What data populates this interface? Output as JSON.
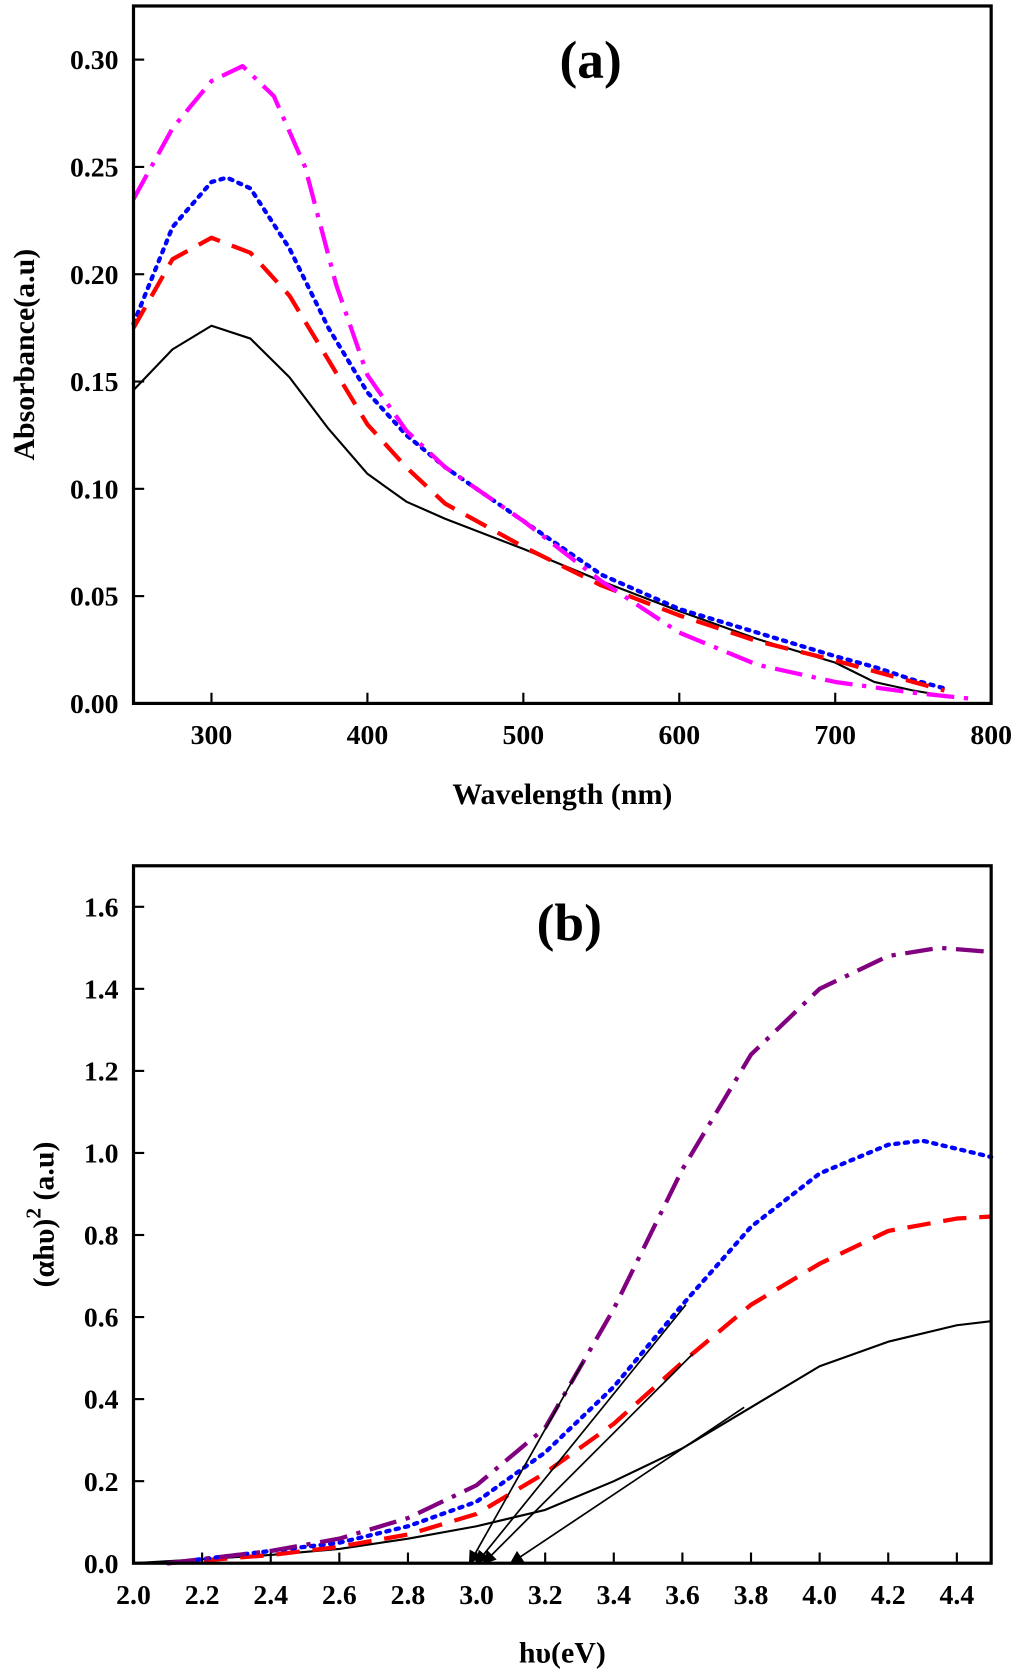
{
  "chart_data": [
    {
      "type": "line",
      "title": "(a)",
      "xlabel": "Wavelength (nm)",
      "ylabel": "Absorbance(a.u)",
      "xlim": [
        250,
        800
      ],
      "ylim": [
        0,
        0.325
      ],
      "xticks": [
        300,
        400,
        500,
        600,
        700,
        800
      ],
      "xtick_labels": [
        "300",
        "400",
        "500",
        "600",
        "700",
        "800"
      ],
      "yticks": [
        0,
        0.05,
        0.1,
        0.15,
        0.2,
        0.25,
        0.3
      ],
      "ytick_labels": [
        "0.00",
        "0.05",
        "0.10",
        "0.15",
        "0.20",
        "0.25",
        "0.30"
      ],
      "grid": false,
      "series": [
        {
          "color": "#000000",
          "style": "solid",
          "x": [
            250,
            275,
            300,
            325,
            350,
            375,
            400,
            425,
            450,
            500,
            550,
            600,
            650,
            700,
            725,
            750,
            775
          ],
          "y": [
            0.146,
            0.165,
            0.176,
            0.17,
            0.152,
            0.128,
            0.107,
            0.094,
            0.086,
            0.072,
            0.057,
            0.043,
            0.03,
            0.019,
            0.01,
            0.006,
            0.003
          ]
        },
        {
          "color": "#0000ff",
          "style": "dotted",
          "x": [
            250,
            275,
            300,
            310,
            325,
            350,
            375,
            400,
            425,
            450,
            500,
            550,
            600,
            650,
            700,
            725,
            750,
            770
          ],
          "y": [
            0.177,
            0.222,
            0.243,
            0.245,
            0.24,
            0.212,
            0.175,
            0.145,
            0.125,
            0.11,
            0.085,
            0.06,
            0.044,
            0.033,
            0.022,
            0.017,
            0.011,
            0.007
          ]
        },
        {
          "color": "#ff0000",
          "style": "dashed",
          "x": [
            250,
            275,
            300,
            325,
            350,
            375,
            400,
            425,
            450,
            500,
            550,
            600,
            650,
            700,
            750,
            770
          ],
          "y": [
            0.175,
            0.207,
            0.217,
            0.21,
            0.19,
            0.16,
            0.13,
            0.11,
            0.093,
            0.073,
            0.055,
            0.041,
            0.029,
            0.02,
            0.01,
            0.006
          ]
        },
        {
          "color": "#ff00ff",
          "style": "dashdot",
          "x": [
            250,
            275,
            300,
            320,
            340,
            360,
            380,
            400,
            425,
            450,
            500,
            550,
            600,
            650,
            700,
            750,
            790
          ],
          "y": [
            0.235,
            0.268,
            0.29,
            0.297,
            0.283,
            0.25,
            0.195,
            0.153,
            0.127,
            0.11,
            0.085,
            0.057,
            0.033,
            0.018,
            0.01,
            0.005,
            0.002
          ]
        }
      ]
    },
    {
      "type": "line",
      "title": "(b)",
      "xlabel": "hυ(eV)",
      "ylabel": "(αhυ)",
      "ylabel_sup": "2",
      "ylabel_unit": " (a.u)",
      "xlim": [
        2.0,
        4.5
      ],
      "ylim": [
        0,
        1.7
      ],
      "xticks": [
        2.0,
        2.2,
        2.4,
        2.6,
        2.8,
        3.0,
        3.2,
        3.4,
        3.6,
        3.8,
        4.0,
        4.2,
        4.4
      ],
      "xtick_labels": [
        "2.0",
        "2.2",
        "2.4",
        "2.6",
        "2.8",
        "3.0",
        "3.2",
        "3.4",
        "3.6",
        "3.8",
        "4.0",
        "4.2",
        "4.4"
      ],
      "yticks": [
        0,
        0.2,
        0.4,
        0.6,
        0.8,
        1.0,
        1.2,
        1.4,
        1.6
      ],
      "ytick_labels": [
        "0.0",
        "0.2",
        "0.4",
        "0.6",
        "0.8",
        "1.0",
        "1.2",
        "1.4",
        "1.6"
      ],
      "grid": false,
      "series": [
        {
          "color": "#000000",
          "style": "solid",
          "x": [
            2.0,
            2.2,
            2.4,
            2.6,
            2.8,
            3.0,
            3.2,
            3.4,
            3.6,
            3.8,
            4.0,
            4.2,
            4.4,
            4.5
          ],
          "y": [
            0,
            0.01,
            0.02,
            0.035,
            0.06,
            0.09,
            0.13,
            0.2,
            0.28,
            0.38,
            0.48,
            0.54,
            0.58,
            0.59
          ]
        },
        {
          "color": "#ff0000",
          "style": "dashed",
          "x": [
            2.1,
            2.4,
            2.6,
            2.8,
            3.0,
            3.2,
            3.4,
            3.6,
            3.8,
            4.0,
            4.2,
            4.4,
            4.5
          ],
          "y": [
            0,
            0.02,
            0.04,
            0.07,
            0.12,
            0.22,
            0.34,
            0.49,
            0.63,
            0.73,
            0.81,
            0.84,
            0.845
          ]
        },
        {
          "color": "#0000ff",
          "style": "dotted",
          "x": [
            2.1,
            2.4,
            2.6,
            2.8,
            3.0,
            3.2,
            3.4,
            3.6,
            3.8,
            4.0,
            4.2,
            4.3,
            4.4,
            4.5
          ],
          "y": [
            0,
            0.03,
            0.05,
            0.09,
            0.15,
            0.27,
            0.43,
            0.63,
            0.82,
            0.95,
            1.02,
            1.03,
            1.01,
            0.99
          ]
        },
        {
          "color": "#800080",
          "style": "dashdot",
          "x": [
            2.1,
            2.4,
            2.6,
            2.8,
            3.0,
            3.2,
            3.4,
            3.6,
            3.8,
            4.0,
            4.2,
            4.35,
            4.5
          ],
          "y": [
            0,
            0.03,
            0.06,
            0.11,
            0.19,
            0.33,
            0.62,
            0.96,
            1.24,
            1.4,
            1.48,
            1.5,
            1.49
          ]
        }
      ],
      "annotations": [
        {
          "type": "arrow",
          "from": [
            3.31,
            0.49
          ],
          "to": [
            2.98,
            0.0
          ]
        },
        {
          "type": "arrow",
          "from": [
            3.61,
            0.63
          ],
          "to": [
            3.0,
            0.0
          ]
        },
        {
          "type": "arrow",
          "from": [
            3.63,
            0.51
          ],
          "to": [
            3.02,
            0.0
          ]
        },
        {
          "type": "arrow",
          "from": [
            3.78,
            0.38
          ],
          "to": [
            3.1,
            0.0
          ]
        }
      ]
    }
  ]
}
